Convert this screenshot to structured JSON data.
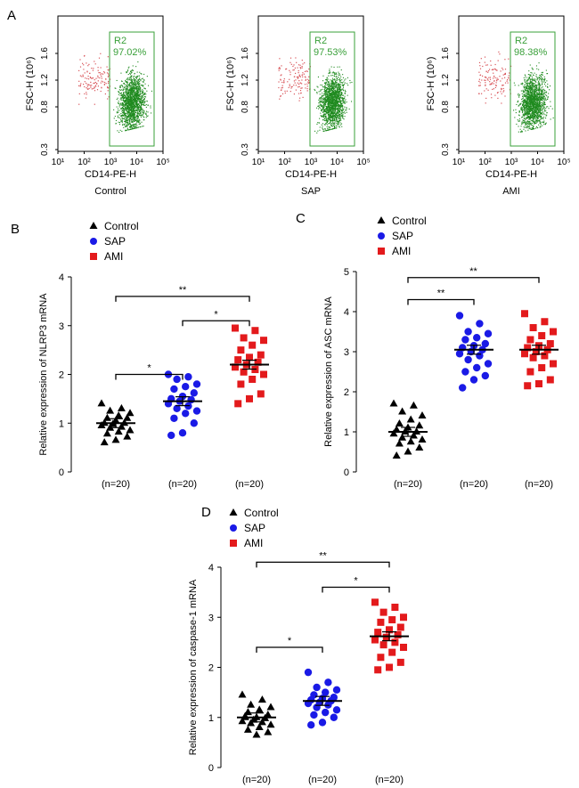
{
  "colors": {
    "control": "#000000",
    "sap": "#1a1ae6",
    "ami": "#e31a1c",
    "gate": "#3aa03a",
    "gated_dots": "#1f8a1f",
    "outside_dots": "#d9555a"
  },
  "chart_data": [
    {
      "panel": "A",
      "type": "scatter",
      "subtype": "flow-cytometry",
      "xlabel": "CD14-PE-H",
      "ylabel": "FSC-H (10⁶)",
      "x_ticks": [
        "10¹",
        "10²",
        "10³",
        "10⁴",
        "10⁵"
      ],
      "y_ticks": [
        "0.3",
        "0.8",
        "1.2",
        "1.6"
      ],
      "plots": [
        {
          "name": "Control",
          "gate": "R2",
          "percent": "97.02%"
        },
        {
          "name": "SAP",
          "gate": "R2",
          "percent": "97.53%"
        },
        {
          "name": "AMI",
          "gate": "R2",
          "percent": "98.38%"
        }
      ]
    },
    {
      "panel": "B",
      "type": "scatter",
      "subtype": "dot-plot",
      "ylabel": "Relative expression of NLRP3 mRNA",
      "ylim": [
        0,
        4
      ],
      "yticks": [
        "0",
        "1",
        "2",
        "3",
        "4"
      ],
      "legend": [
        "Control",
        "SAP",
        "AMI"
      ],
      "categories": [
        "(n=20)",
        "(n=20)",
        "(n=20)"
      ],
      "series": [
        {
          "name": "Control",
          "mean": 1.0,
          "values": [
            1.4,
            1.3,
            1.25,
            1.2,
            1.15,
            1.1,
            1.1,
            1.05,
            1.0,
            1.0,
            0.98,
            0.95,
            0.92,
            0.9,
            0.85,
            0.82,
            0.78,
            0.72,
            0.65,
            0.6
          ]
        },
        {
          "name": "SAP",
          "mean": 1.45,
          "values": [
            2.0,
            1.95,
            1.9,
            1.8,
            1.75,
            1.7,
            1.62,
            1.55,
            1.5,
            1.48,
            1.45,
            1.4,
            1.35,
            1.3,
            1.25,
            1.2,
            1.1,
            1.0,
            0.8,
            0.75
          ]
        },
        {
          "name": "AMI",
          "mean": 2.2,
          "values": [
            2.95,
            2.9,
            2.75,
            2.7,
            2.6,
            2.5,
            2.4,
            2.35,
            2.3,
            2.25,
            2.2,
            2.15,
            2.1,
            2.05,
            2.0,
            1.9,
            1.8,
            1.6,
            1.5,
            1.4
          ]
        }
      ],
      "brackets": [
        {
          "from": 0,
          "to": 1,
          "y": 2.0,
          "label": "*"
        },
        {
          "from": 1,
          "to": 2,
          "y": 3.1,
          "label": "*"
        },
        {
          "from": 0,
          "to": 2,
          "y": 3.6,
          "label": "**"
        }
      ]
    },
    {
      "panel": "C",
      "type": "scatter",
      "subtype": "dot-plot",
      "ylabel": "Relative expression of ASC mRNA",
      "ylim": [
        0,
        5
      ],
      "yticks": [
        "0",
        "1",
        "2",
        "3",
        "4",
        "5"
      ],
      "legend": [
        "Control",
        "SAP",
        "AMI"
      ],
      "categories": [
        "(n=20)",
        "(n=20)",
        "(n=20)"
      ],
      "series": [
        {
          "name": "Control",
          "mean": 1.0,
          "values": [
            1.7,
            1.65,
            1.5,
            1.4,
            1.3,
            1.2,
            1.15,
            1.1,
            1.05,
            1.0,
            1.0,
            0.95,
            0.9,
            0.85,
            0.8,
            0.75,
            0.7,
            0.6,
            0.5,
            0.4
          ]
        },
        {
          "name": "SAP",
          "mean": 3.05,
          "values": [
            3.9,
            3.7,
            3.5,
            3.45,
            3.35,
            3.3,
            3.2,
            3.15,
            3.1,
            3.05,
            3.0,
            2.95,
            2.9,
            2.8,
            2.7,
            2.6,
            2.5,
            2.4,
            2.3,
            2.1
          ]
        },
        {
          "name": "AMI",
          "mean": 3.05,
          "values": [
            3.95,
            3.75,
            3.6,
            3.5,
            3.4,
            3.3,
            3.2,
            3.15,
            3.1,
            3.05,
            3.0,
            2.95,
            2.9,
            2.85,
            2.7,
            2.6,
            2.5,
            2.3,
            2.2,
            2.15
          ]
        }
      ],
      "brackets": [
        {
          "from": 0,
          "to": 1,
          "y": 4.3,
          "label": "**"
        },
        {
          "from": 0,
          "to": 2,
          "y": 4.85,
          "label": "**"
        }
      ]
    },
    {
      "panel": "D",
      "type": "scatter",
      "subtype": "dot-plot",
      "ylabel": "Relative expression of caspase-1 mRNA",
      "ylim": [
        0,
        4
      ],
      "yticks": [
        "0",
        "1",
        "2",
        "3",
        "4"
      ],
      "legend": [
        "Control",
        "SAP",
        "AMI"
      ],
      "categories": [
        "(n=20)",
        "(n=20)",
        "(n=20)"
      ],
      "series": [
        {
          "name": "Control",
          "mean": 1.0,
          "values": [
            1.45,
            1.35,
            1.25,
            1.2,
            1.15,
            1.1,
            1.05,
            1.0,
            1.0,
            0.98,
            0.95,
            0.92,
            0.9,
            0.88,
            0.85,
            0.8,
            0.75,
            0.7,
            0.65,
            1.02
          ]
        },
        {
          "name": "SAP",
          "mean": 1.33,
          "values": [
            1.9,
            1.7,
            1.6,
            1.55,
            1.5,
            1.45,
            1.4,
            1.38,
            1.35,
            1.33,
            1.3,
            1.28,
            1.25,
            1.2,
            1.15,
            1.1,
            1.05,
            1.0,
            0.9,
            0.85
          ]
        },
        {
          "name": "AMI",
          "mean": 2.62,
          "values": [
            3.3,
            3.2,
            3.1,
            3.0,
            2.95,
            2.9,
            2.8,
            2.75,
            2.7,
            2.65,
            2.6,
            2.55,
            2.5,
            2.45,
            2.4,
            2.3,
            2.2,
            2.1,
            2.0,
            1.95
          ]
        }
      ],
      "brackets": [
        {
          "from": 0,
          "to": 1,
          "y": 2.4,
          "label": "*"
        },
        {
          "from": 1,
          "to": 2,
          "y": 3.6,
          "label": "*"
        },
        {
          "from": 0,
          "to": 2,
          "y": 4.1,
          "label": "**"
        }
      ]
    }
  ]
}
